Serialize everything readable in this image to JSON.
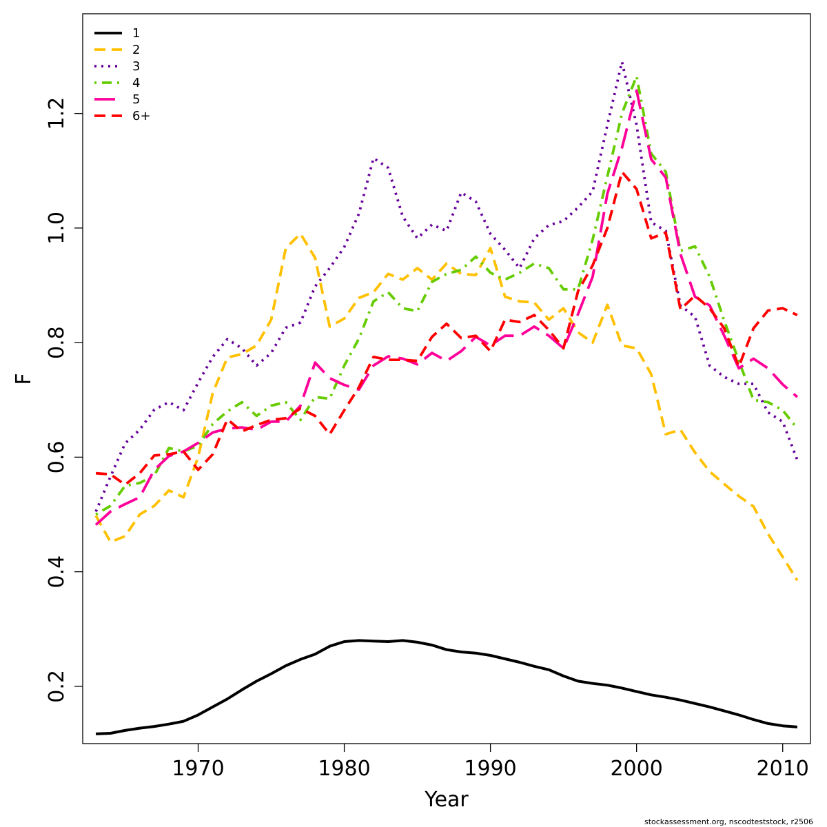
{
  "chart_data": {
    "type": "line",
    "title": "",
    "xlabel": "Year",
    "ylabel": "F",
    "xlim": [
      1962.1,
      2011.9
    ],
    "ylim": [
      0.1,
      1.374
    ],
    "xticks": [
      1970,
      1980,
      1990,
      2000,
      2010
    ],
    "yticks": [
      0.2,
      0.4,
      0.6,
      0.8,
      1.0,
      1.2
    ],
    "ytick_labels": [
      "0.2",
      "0.4",
      "0.6",
      "0.8",
      "1.0",
      "1.2"
    ],
    "grid": false,
    "legend_position": "top-left",
    "x": [
      1963,
      1964,
      1965,
      1966,
      1967,
      1968,
      1969,
      1970,
      1971,
      1972,
      1973,
      1974,
      1975,
      1976,
      1977,
      1978,
      1979,
      1980,
      1981,
      1982,
      1983,
      1984,
      1985,
      1986,
      1987,
      1988,
      1989,
      1990,
      1991,
      1992,
      1993,
      1994,
      1995,
      1996,
      1997,
      1998,
      1999,
      2000,
      2001,
      2002,
      2003,
      2004,
      2005,
      2006,
      2007,
      2008,
      2009,
      2010,
      2011
    ],
    "series": [
      {
        "name": "1",
        "color": "#000000",
        "dash": "solid",
        "values": [
          0.117,
          0.118,
          0.123,
          0.127,
          0.13,
          0.134,
          0.139,
          0.15,
          0.164,
          0.178,
          0.194,
          0.209,
          0.222,
          0.236,
          0.247,
          0.256,
          0.27,
          0.278,
          0.28,
          0.279,
          0.278,
          0.28,
          0.277,
          0.272,
          0.264,
          0.26,
          0.258,
          0.254,
          0.248,
          0.242,
          0.235,
          0.229,
          0.218,
          0.209,
          0.205,
          0.202,
          0.197,
          0.191,
          0.185,
          0.181,
          0.176,
          0.17,
          0.164,
          0.157,
          0.15,
          0.142,
          0.135,
          0.131,
          0.129
        ]
      },
      {
        "name": "2",
        "color": "#ffc000",
        "dash": "dashed",
        "values": [
          0.498,
          0.452,
          0.462,
          0.5,
          0.515,
          0.542,
          0.53,
          0.6,
          0.712,
          0.774,
          0.78,
          0.795,
          0.84,
          0.965,
          0.99,
          0.948,
          0.828,
          0.842,
          0.878,
          0.888,
          0.92,
          0.91,
          0.93,
          0.91,
          0.938,
          0.92,
          0.918,
          0.965,
          0.88,
          0.872,
          0.87,
          0.84,
          0.86,
          0.818,
          0.8,
          0.866,
          0.795,
          0.79,
          0.745,
          0.64,
          0.648,
          0.608,
          0.575,
          0.553,
          0.532,
          0.514,
          0.466,
          0.426,
          0.385
        ]
      },
      {
        "name": "3",
        "color": "#660099",
        "dash": "dotted",
        "values": [
          0.505,
          0.566,
          0.624,
          0.648,
          0.683,
          0.696,
          0.682,
          0.73,
          0.775,
          0.806,
          0.79,
          0.76,
          0.782,
          0.826,
          0.835,
          0.898,
          0.93,
          0.967,
          1.025,
          1.122,
          1.105,
          1.02,
          0.982,
          1.006,
          0.995,
          1.062,
          1.046,
          0.99,
          0.962,
          0.93,
          0.982,
          1.005,
          1.012,
          1.036,
          1.064,
          1.18,
          1.29,
          1.18,
          1.01,
          0.995,
          0.865,
          0.845,
          0.76,
          0.74,
          0.728,
          0.728,
          0.678,
          0.662,
          0.595
        ]
      },
      {
        "name": "4",
        "color": "#66cc00",
        "dash": "dashdot",
        "values": [
          0.5,
          0.515,
          0.55,
          0.555,
          0.568,
          0.616,
          0.61,
          0.62,
          0.658,
          0.68,
          0.696,
          0.672,
          0.69,
          0.696,
          0.665,
          0.705,
          0.702,
          0.76,
          0.807,
          0.872,
          0.888,
          0.86,
          0.855,
          0.906,
          0.92,
          0.927,
          0.95,
          0.922,
          0.91,
          0.922,
          0.938,
          0.93,
          0.893,
          0.893,
          0.98,
          1.09,
          1.2,
          1.265,
          1.13,
          1.098,
          0.96,
          0.968,
          0.915,
          0.838,
          0.768,
          0.7,
          0.696,
          0.682,
          0.65
        ]
      },
      {
        "name": "5",
        "color": "#ff0099",
        "dash": "longdash",
        "values": [
          0.482,
          0.505,
          0.518,
          0.53,
          0.578,
          0.602,
          0.61,
          0.625,
          0.643,
          0.65,
          0.652,
          0.648,
          0.662,
          0.662,
          0.69,
          0.765,
          0.738,
          0.726,
          0.718,
          0.76,
          0.776,
          0.772,
          0.762,
          0.782,
          0.768,
          0.785,
          0.81,
          0.795,
          0.812,
          0.812,
          0.828,
          0.812,
          0.79,
          0.85,
          0.915,
          1.06,
          1.14,
          1.24,
          1.12,
          1.088,
          0.955,
          0.88,
          0.865,
          0.812,
          0.755,
          0.772,
          0.755,
          0.727,
          0.705
        ]
      },
      {
        "name": "6+",
        "color": "#ff0000",
        "dash": "dashed",
        "values": [
          0.572,
          0.57,
          0.552,
          0.572,
          0.603,
          0.605,
          0.61,
          0.578,
          0.605,
          0.666,
          0.645,
          0.656,
          0.665,
          0.668,
          0.685,
          0.672,
          0.64,
          0.682,
          0.722,
          0.775,
          0.77,
          0.77,
          0.768,
          0.81,
          0.833,
          0.808,
          0.812,
          0.785,
          0.84,
          0.836,
          0.848,
          0.822,
          0.79,
          0.89,
          0.935,
          1.0,
          1.098,
          1.068,
          0.982,
          0.992,
          0.858,
          0.882,
          0.86,
          0.825,
          0.758,
          0.825,
          0.856,
          0.86,
          0.848
        ]
      }
    ],
    "credit": "stockassessment.org, nscodteststock, r2506"
  }
}
